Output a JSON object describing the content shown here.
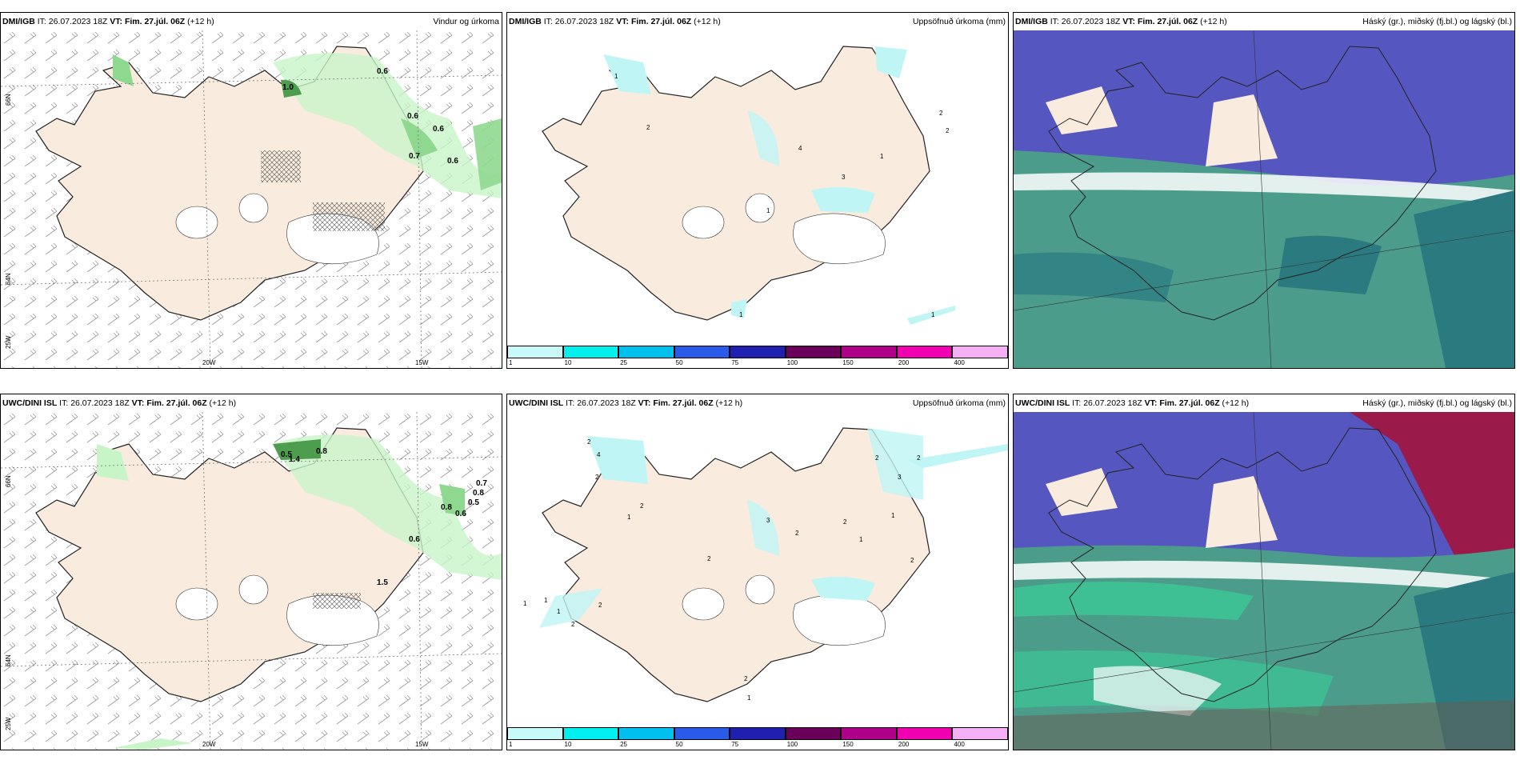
{
  "colors": {
    "land": "#f9ecde",
    "ice": "#ffffff",
    "precip_light": "#c8f5c8",
    "precip_mid": "#8fd88f",
    "precip_dark": "#4e9c4e",
    "accum": "#bff5f5",
    "cloud_high": "#5656c0",
    "cloud_mid": "#4c9c8c",
    "cloud_low": "#2a7a80",
    "cloud_bright": "#3cc896",
    "cloud_red": "#9a1a4a"
  },
  "rows": [
    {
      "model": "DMI/IGB",
      "it_label": "IT:",
      "it_value": "26.07.2023 18Z",
      "vt_label": "VT:",
      "vt_value": "Fim. 27.júl. 06Z",
      "lead": "(+12 h)"
    },
    {
      "model": "UWC/DINI ISL",
      "it_label": "IT:",
      "it_value": "26.07.2023 18Z",
      "vt_label": "VT:",
      "vt_value": "Fim. 27.júl. 06Z",
      "lead": "(+12 h)"
    }
  ],
  "panel_titles": {
    "wind": "Vindur og úrkoma",
    "accum": "Uppsöfnuð úrkoma (mm)",
    "cloud": "Háský (gr.), miðský (fj.bl.) og lágský (bl.)"
  },
  "axis_labels": {
    "lat_66": "66N",
    "lat_64": "64N",
    "lon_25": "25W",
    "lon_20": "20W",
    "lon_15": "15W"
  },
  "colorbar": {
    "ticks": [
      "1",
      "10",
      "25",
      "50",
      "75",
      "100",
      "150",
      "200",
      "400"
    ],
    "colors": [
      "#c8fafa",
      "#00f0f0",
      "#00c0f0",
      "#2a5ae8",
      "#2020b0",
      "#6a005a",
      "#b0008a",
      "#f000b0",
      "#f5b0f5"
    ]
  },
  "wind_values_top": [
    "1.0",
    "0.6",
    "0.6",
    "0.6",
    "0.7",
    "0.6"
  ],
  "wind_values_bottom": [
    "0.5",
    "1.4",
    "0.8",
    "0.7",
    "0.8",
    "0.5",
    "0.8",
    "0.6",
    "0.6",
    "1.5"
  ],
  "accum_values_top": [
    "1",
    "2",
    "4",
    "1",
    "3",
    "2",
    "2",
    "1",
    "1",
    "1"
  ],
  "accum_values_bottom": [
    "2",
    "4",
    "2",
    "1",
    "2",
    "3",
    "2",
    "2",
    "1",
    "1",
    "2",
    "3",
    "2",
    "2",
    "2",
    "1",
    "1",
    "2",
    "2",
    "1",
    "2",
    "1"
  ]
}
